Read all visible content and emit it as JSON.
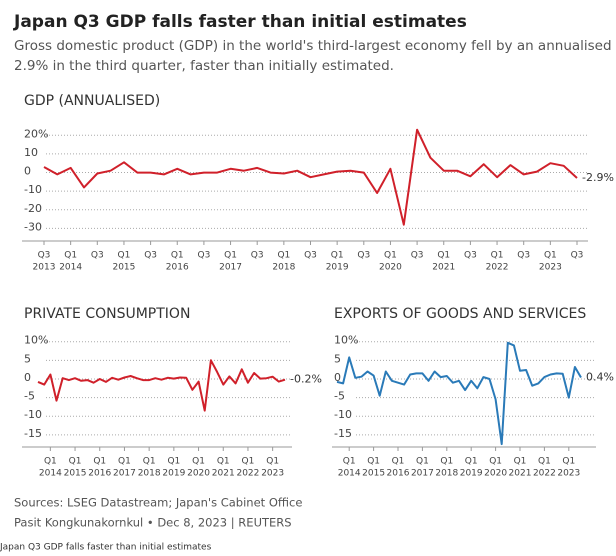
{
  "title": "Japan Q3 GDP falls faster than initial estimates",
  "subtitle_lines": [
    "Gross domestic product (GDP) in the world's third-largest economy fell by an annualised",
    "2.9% in the third quarter, faster than initially estimated."
  ],
  "sources": "Sources: LSEG Datastream; Japan's Cabinet Office",
  "byline": "Pasit Kongkunakornkul • Dec 8, 2023 | REUTERS",
  "caption": "Japan Q3 GDP falls faster than initial estimates",
  "chart_data": [
    {
      "type": "line",
      "title": "GDP (ANNUALISED)",
      "color": "#d0202a",
      "grid": true,
      "categories": [
        "Q3",
        null,
        "Q1",
        null,
        "Q3",
        null,
        "Q1",
        null,
        "Q3",
        null,
        "Q1",
        null,
        "Q3",
        null,
        "Q1",
        null,
        "Q3",
        null,
        "Q1",
        null,
        "Q3",
        null,
        "Q1",
        null,
        "Q3",
        null,
        "Q1",
        null,
        "Q3",
        null,
        "Q1",
        null,
        "Q3",
        null,
        "Q1",
        null,
        "Q3",
        null,
        "Q1",
        null,
        "Q3"
      ],
      "category_years": [
        "2013",
        null,
        "2014",
        null,
        null,
        null,
        "2015",
        null,
        null,
        null,
        "2016",
        null,
        null,
        null,
        "2017",
        null,
        null,
        null,
        "2018",
        null,
        null,
        null,
        "2019",
        null,
        null,
        null,
        "2020",
        null,
        null,
        null,
        "2021",
        null,
        null,
        null,
        "2022",
        null,
        null,
        null,
        "2023",
        null,
        null
      ],
      "values": [
        3.0,
        -1.0,
        2.5,
        -8.0,
        -0.5,
        1.0,
        5.5,
        0.0,
        0.0,
        -1.0,
        2.0,
        -1.0,
        0.0,
        0.0,
        2.0,
        1.0,
        2.5,
        0.0,
        -0.5,
        1.0,
        -2.5,
        -1.0,
        0.5,
        1.0,
        0.0,
        -11.0,
        2.0,
        -28.0,
        23.0,
        8.0,
        1.0,
        1.0,
        -2.0,
        4.5,
        -2.5,
        4.0,
        -1.0,
        0.5,
        5.0,
        3.6,
        -2.9
      ],
      "value_labels": [
        null,
        null,
        null,
        null,
        null,
        null,
        null,
        null,
        null,
        null,
        null,
        null,
        null,
        null,
        null,
        null,
        null,
        null,
        null,
        null,
        null,
        null,
        null,
        null,
        null,
        null,
        null,
        null,
        null,
        null,
        null,
        null,
        null,
        null,
        null,
        null,
        null,
        null,
        null,
        null,
        "-2.9%"
      ],
      "ylim": [
        -33,
        25
      ],
      "yticks": [
        {
          "value": 20,
          "label": "20%"
        },
        10,
        0,
        -10,
        -20,
        -30
      ]
    },
    {
      "type": "line",
      "title": "PRIVATE CONSUMPTION",
      "color": "#d0202a",
      "grid": true,
      "categories": [
        null,
        null,
        "Q1",
        null,
        null,
        null,
        "Q1",
        null,
        null,
        null,
        "Q1",
        null,
        null,
        null,
        "Q1",
        null,
        null,
        null,
        "Q1",
        null,
        null,
        null,
        "Q1",
        null,
        null,
        null,
        "Q1",
        null,
        null,
        null,
        "Q1",
        null,
        null,
        null,
        "Q1",
        null,
        null,
        null,
        "Q1",
        null,
        null
      ],
      "category_years": [
        null,
        null,
        "2014",
        null,
        null,
        null,
        "2015",
        null,
        null,
        null,
        "2016",
        null,
        null,
        null,
        "2017",
        null,
        null,
        null,
        "2018",
        null,
        null,
        null,
        "2019",
        null,
        null,
        null,
        "2020",
        null,
        null,
        null,
        "2021",
        null,
        null,
        null,
        "2022",
        null,
        null,
        null,
        "2023",
        null,
        null
      ],
      "values": [
        -0.8,
        -1.5,
        1.2,
        -5.8,
        0.2,
        -0.3,
        0.2,
        -0.5,
        -0.3,
        -1.0,
        0.0,
        -0.8,
        0.3,
        -0.2,
        0.4,
        0.8,
        0.2,
        -0.3,
        -0.3,
        0.2,
        -0.2,
        0.3,
        0.1,
        0.4,
        0.3,
        -2.9,
        -0.7,
        -8.5,
        5.0,
        1.9,
        -1.5,
        0.7,
        -1.2,
        2.6,
        -1.0,
        1.6,
        0.1,
        0.2,
        0.6,
        -0.7,
        -0.2
      ],
      "value_labels": [
        null,
        null,
        null,
        null,
        null,
        null,
        null,
        null,
        null,
        null,
        null,
        null,
        null,
        null,
        null,
        null,
        null,
        null,
        null,
        null,
        null,
        null,
        null,
        null,
        null,
        null,
        null,
        null,
        null,
        null,
        null,
        null,
        null,
        null,
        null,
        null,
        null,
        null,
        null,
        null,
        "-0.2%"
      ],
      "ylim": [
        -18,
        11
      ],
      "yticks": [
        {
          "value": 10,
          "label": "10%"
        },
        5,
        0,
        -5,
        -10,
        -15
      ]
    },
    {
      "type": "line",
      "title": "EXPORTS OF GOODS AND SERVICES",
      "color": "#2a7ab8",
      "grid": true,
      "categories": [
        null,
        null,
        "Q1",
        null,
        null,
        null,
        "Q1",
        null,
        null,
        null,
        "Q1",
        null,
        null,
        null,
        "Q1",
        null,
        null,
        null,
        "Q1",
        null,
        null,
        null,
        "Q1",
        null,
        null,
        null,
        "Q1",
        null,
        null,
        null,
        "Q1",
        null,
        null,
        null,
        "Q1",
        null,
        null,
        null,
        "Q1",
        null,
        null
      ],
      "category_years": [
        null,
        null,
        "2014",
        null,
        null,
        null,
        "2015",
        null,
        null,
        null,
        "2016",
        null,
        null,
        null,
        "2017",
        null,
        null,
        null,
        "2018",
        null,
        null,
        null,
        "2019",
        null,
        null,
        null,
        "2020",
        null,
        null,
        null,
        "2021",
        null,
        null,
        null,
        "2022",
        null,
        null,
        null,
        "2023",
        null,
        null
      ],
      "values": [
        -0.8,
        -1.2,
        5.8,
        0.3,
        0.6,
        2.0,
        0.9,
        -4.5,
        2.0,
        -0.5,
        -1.0,
        -1.5,
        1.2,
        1.5,
        1.5,
        -0.5,
        2.0,
        0.5,
        0.8,
        -1.0,
        -0.5,
        -3.0,
        -0.5,
        -2.5,
        0.5,
        0.0,
        -5.5,
        -17.5,
        9.7,
        9.0,
        2.2,
        2.4,
        -1.8,
        -1.2,
        0.5,
        1.2,
        1.5,
        1.4,
        -5.0,
        3.2,
        0.4
      ],
      "value_labels": [
        null,
        null,
        null,
        null,
        null,
        null,
        null,
        null,
        null,
        null,
        null,
        null,
        null,
        null,
        null,
        null,
        null,
        null,
        null,
        null,
        null,
        null,
        null,
        null,
        null,
        null,
        null,
        null,
        null,
        null,
        null,
        null,
        null,
        null,
        null,
        null,
        null,
        null,
        null,
        null,
        "0.4%"
      ],
      "ylim": [
        -18,
        11
      ],
      "yticks": [
        {
          "value": 10,
          "label": "10%"
        },
        5,
        0,
        -5,
        -10,
        -15
      ]
    }
  ]
}
